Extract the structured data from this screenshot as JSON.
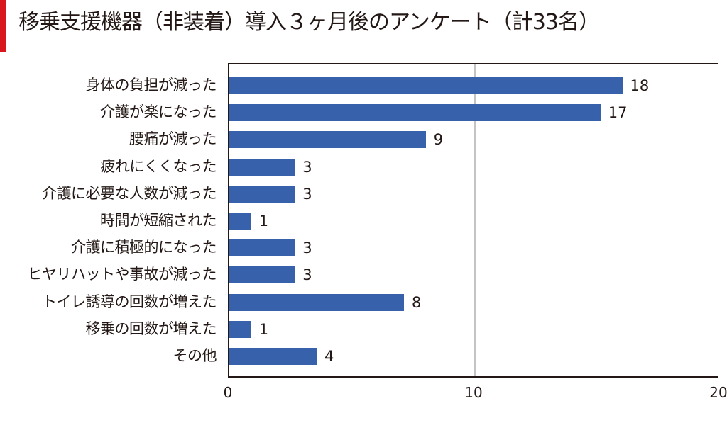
{
  "title": "移乗支援機器（非装着）導入３ヶ月後のアンケート（計33名）",
  "colors": {
    "accent": "#d7161e",
    "bar": "#3761ab",
    "gridline": "#c4c4c4",
    "text": "#231815"
  },
  "chart_data": {
    "type": "bar",
    "orientation": "horizontal",
    "title": "移乗支援機器（非装着）導入３ヶ月後のアンケート（計33名）",
    "xlabel": "",
    "ylabel": "",
    "categories": [
      "身体の負担が減った",
      "介護が楽になった",
      "腰痛が減った",
      "疲れにくくなった",
      "介護に必要な人数が減った",
      "時間が短縮された",
      "介護に積極的になった",
      "ヒヤリハットや事故が減った",
      "トイレ誘導の回数が増えた",
      "移乗の回数が増えた",
      "その他"
    ],
    "values": [
      18,
      17,
      9,
      3,
      3,
      1,
      3,
      3,
      8,
      1,
      4
    ],
    "value_labels": [
      "18",
      "17",
      "9",
      "3",
      "3",
      "1",
      "3",
      "3",
      "8",
      "1",
      "4"
    ],
    "xlim": [
      0,
      20
    ],
    "xticks": [
      "0",
      "10",
      "20"
    ],
    "grid": "vertical line at 10",
    "legend": "none",
    "data_labels": "right of bars"
  }
}
